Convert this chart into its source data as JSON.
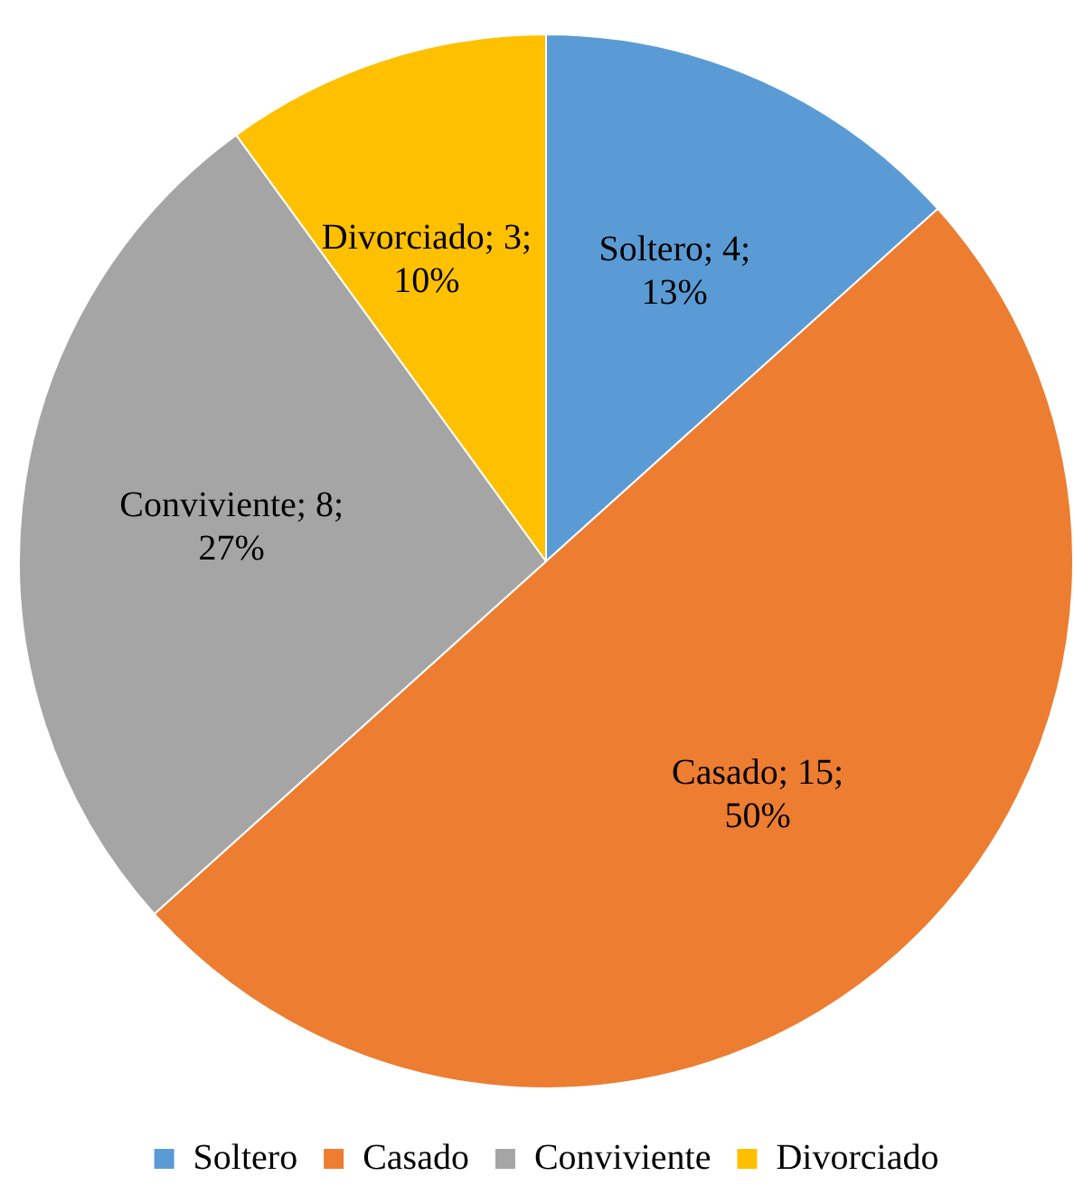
{
  "chart_data": {
    "type": "pie",
    "categories": [
      "Soltero",
      "Casado",
      "Conviviente",
      "Divorciado"
    ],
    "values": [
      4,
      15,
      8,
      3
    ],
    "colors": [
      "#5b9bd5",
      "#ed7d31",
      "#a5a5a5",
      "#ffc000"
    ],
    "value_labels": [
      "Soltero; 4; 13%",
      "Casado; 15; 50%",
      "Conviviente; 8; 27%",
      "Divorciado; 3; 10%"
    ],
    "legend": "bottom"
  }
}
